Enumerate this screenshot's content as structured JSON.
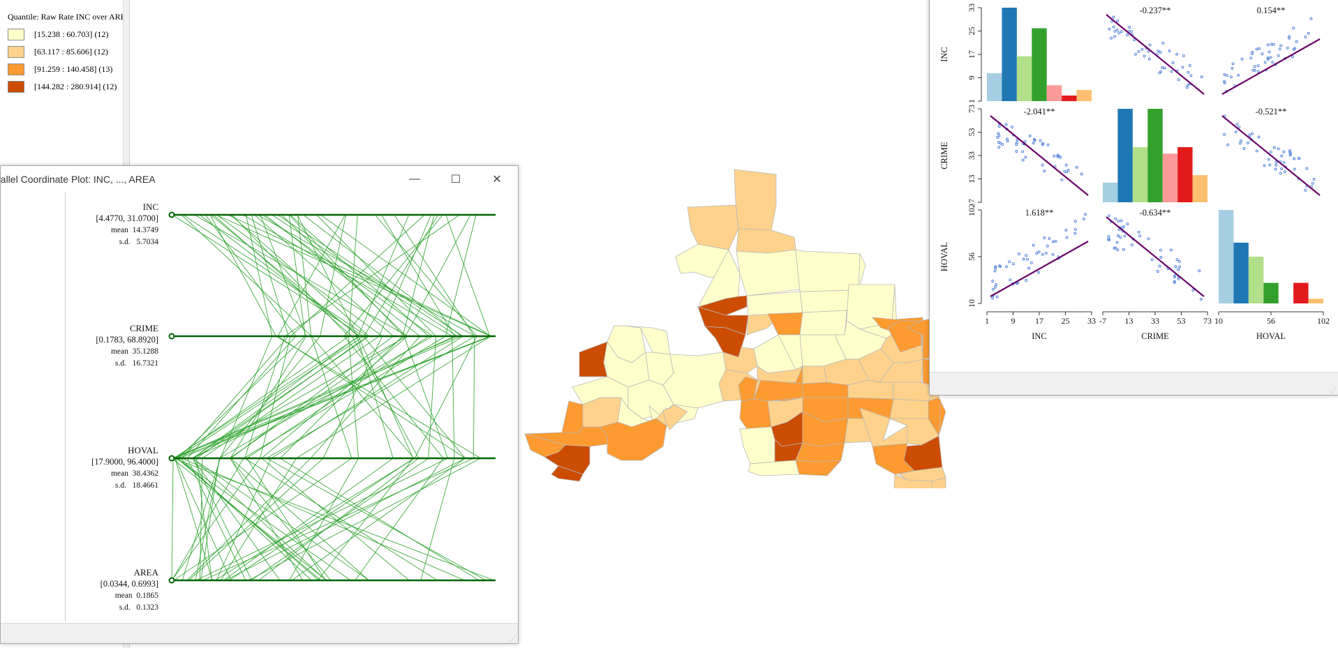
{
  "legend": {
    "title": "Quantile: Raw Rate INC over AREA",
    "items": [
      {
        "label": "[15.238 : 60.703] (12)",
        "color": "#ffffcc"
      },
      {
        "label": "[63.117 : 85.606] (12)",
        "color": "#fed28a"
      },
      {
        "label": "[91.259 : 140.458] (13)",
        "color": "#fd9a30"
      },
      {
        "label": "[144.282 : 280.914] (12)",
        "color": "#cc4c02"
      }
    ]
  },
  "pcp": {
    "title": "Parallel Coordinate Plot: INC, ..., AREA",
    "line_color": "#2aa12a",
    "axis_color": "#006400",
    "axes": [
      {
        "name": "INC",
        "range": "[4.4770, 31.0700]",
        "mean_label": "mean",
        "mean": "14.3749",
        "sd_label": "s.d.",
        "sd": "5.7034"
      },
      {
        "name": "CRIME",
        "range": "[0.1783, 68.8920]",
        "mean_label": "mean",
        "mean": "35.1288",
        "sd_label": "s.d.",
        "sd": "16.7321"
      },
      {
        "name": "HOVAL",
        "range": "[17.9000, 96.4000]",
        "mean_label": "mean",
        "mean": "38.4362",
        "sd_label": "s.d.",
        "sd": "18.4661"
      },
      {
        "name": "AREA",
        "range": "[0.0344, 0.6993]",
        "mean_label": "mean",
        "mean": "0.1865",
        "sd_label": "s.d.",
        "sd": "0.1323"
      }
    ],
    "buttons": {
      "minimize": "—",
      "maximize": "☐",
      "close": "✕"
    }
  },
  "map": {
    "palette": [
      "#ffffcc",
      "#fed28a",
      "#fd9a30",
      "#cc4c02"
    ],
    "border": "#b8b8b8"
  },
  "scatter_matrix": {
    "variables": [
      "INC",
      "CRIME",
      "HOVAL"
    ],
    "point_color": "#4a7bd8",
    "line_color": "#6a006a",
    "histogram_colors": [
      "#a6cee3",
      "#1f78b4",
      "#b2df8a",
      "#33a02c",
      "#fb9a99",
      "#e31a1c",
      "#fdbf6f"
    ],
    "axes": {
      "INC": {
        "ticks": [
          "1",
          "9",
          "17",
          "25",
          "33"
        ],
        "range": [
          1,
          33
        ]
      },
      "CRIME": {
        "ticks": [
          "-7",
          "13",
          "33",
          "53",
          "73"
        ],
        "range": [
          -7,
          73
        ]
      },
      "HOVAL": {
        "ticks": [
          "10",
          "56",
          "102"
        ],
        "range": [
          10,
          102
        ]
      }
    },
    "hist_bars": {
      "INC": [
        0.3,
        1.0,
        0.48,
        0.78,
        0.17,
        0.06,
        0.12
      ],
      "CRIME": [
        0.21,
        1.0,
        0.59,
        1.0,
        0.52,
        0.59,
        0.29
      ],
      "HOVAL": [
        1.0,
        0.65,
        0.5,
        0.22,
        0.0,
        0.22,
        0.05
      ]
    },
    "slopes": {
      "INC_vs_CRIME": "-0.237**",
      "INC_vs_HOVAL": "0.154**",
      "CRIME_vs_INC": "-2.041**",
      "CRIME_vs_HOVAL": "-0.521**",
      "HOVAL_vs_INC": "1.618**",
      "HOVAL_vs_CRIME": "-0.634**"
    }
  }
}
